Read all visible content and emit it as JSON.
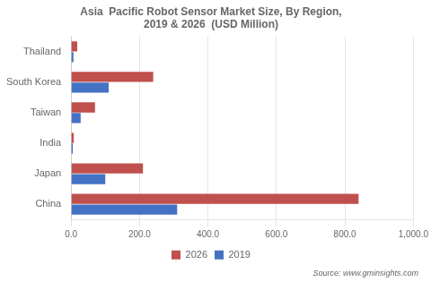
{
  "chart_data": {
    "type": "bar",
    "orientation": "horizontal",
    "title": "Asia  Pacific Robot Sensor Market Size, By Region,\n2019 & 2026  (USD Million)",
    "categories": [
      "China",
      "Japan",
      "India",
      "Taiwan",
      "South Korea",
      "Thailand"
    ],
    "series": [
      {
        "name": "2026",
        "color": "#c0504d",
        "values": [
          840,
          210,
          8,
          70,
          240,
          18
        ]
      },
      {
        "name": "2019",
        "color": "#4472c4",
        "values": [
          310,
          100,
          5,
          28,
          110,
          7
        ]
      }
    ],
    "xlim": [
      0,
      1000
    ],
    "xticks": [
      {
        "value": 0,
        "label": "0.0"
      },
      {
        "value": 200,
        "label": "200.0"
      },
      {
        "value": 400,
        "label": "400.0"
      },
      {
        "value": 600,
        "label": "600.0"
      },
      {
        "value": 800,
        "label": "800.0"
      },
      {
        "value": 1000,
        "label": "1,000.0"
      }
    ],
    "grid": true,
    "legend": "bottom",
    "annotations": [
      "Source: www.gminsights.com"
    ]
  }
}
